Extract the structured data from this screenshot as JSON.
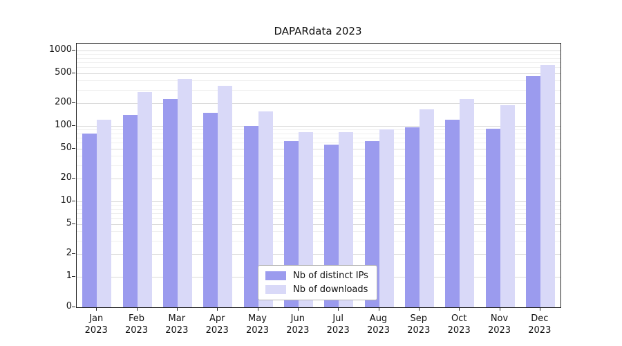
{
  "title": "DAPARdata 2023",
  "chart_data": {
    "type": "bar",
    "title": "DAPARdata 2023",
    "categories": [
      "Jan 2023",
      "Feb 2023",
      "Mar 2023",
      "Apr 2023",
      "May 2023",
      "Jun 2023",
      "Jul 2023",
      "Aug 2023",
      "Sep 2023",
      "Oct 2023",
      "Nov 2023",
      "Dec 2023"
    ],
    "series": [
      {
        "name": "Nb of distinct IPs",
        "color": "#9b9bee",
        "values": [
          80,
          140,
          230,
          150,
          100,
          63,
          56,
          63,
          95,
          120,
          92,
          460
        ]
      },
      {
        "name": "Nb of downloads",
        "color": "#d9d9f8",
        "values": [
          120,
          280,
          420,
          340,
          155,
          83,
          82,
          90,
          165,
          230,
          190,
          640
        ]
      }
    ],
    "xlabel": "",
    "ylabel": "",
    "yscale": "log",
    "yticks": [
      0,
      1,
      2,
      5,
      10,
      20,
      50,
      100,
      200,
      500,
      1000
    ],
    "ylim": [
      0,
      1200
    ],
    "grid": "both",
    "legend_position": "lower-center"
  },
  "legend": {
    "items": [
      {
        "label": "Nb of distinct IPs",
        "color": "#9b9bee"
      },
      {
        "label": "Nb of downloads",
        "color": "#d9d9f8"
      }
    ]
  }
}
